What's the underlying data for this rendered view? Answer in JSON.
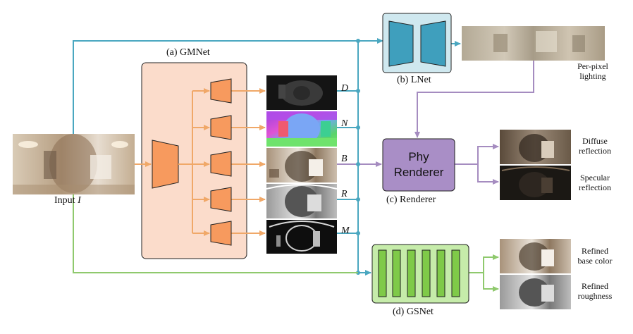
{
  "labels": {
    "gmnet": "(a) GMNet",
    "lnet": "(b) LNet",
    "renderer": "(c) Renderer",
    "gsnet": "(d) GSNet",
    "input_prefix": "Input ",
    "input_symbol": "I",
    "per_pixel_line1": "Per-pixel",
    "per_pixel_line2": "lighting",
    "phy_line1": "Phy",
    "phy_line2": "Renderer",
    "diffuse_line1": "Diffuse",
    "diffuse_line2": "reflection",
    "specular_line1": "Specular",
    "specular_line2": "reflection",
    "refined_base_line1": "Refined",
    "refined_base_line2": "base color",
    "refined_rough_line1": "Refined",
    "refined_rough_line2": "roughness"
  },
  "maps": [
    "D",
    "N",
    "B",
    "R",
    "M"
  ],
  "colors": {
    "gmnet_fill": "#fbdccb",
    "decoder_fill": "#f79a5e",
    "orange_arrow": "#f0a868",
    "teal": "#4aa7c0",
    "lnet_fill": "#cfe8ef",
    "lnet_block": "#3f9fbd",
    "purple": "#a58cc0",
    "renderer_fill": "#a98ec6",
    "green": "#8fc96d",
    "gsnet_fill": "#c6ecaa",
    "gsnet_bar": "#7fca48"
  }
}
